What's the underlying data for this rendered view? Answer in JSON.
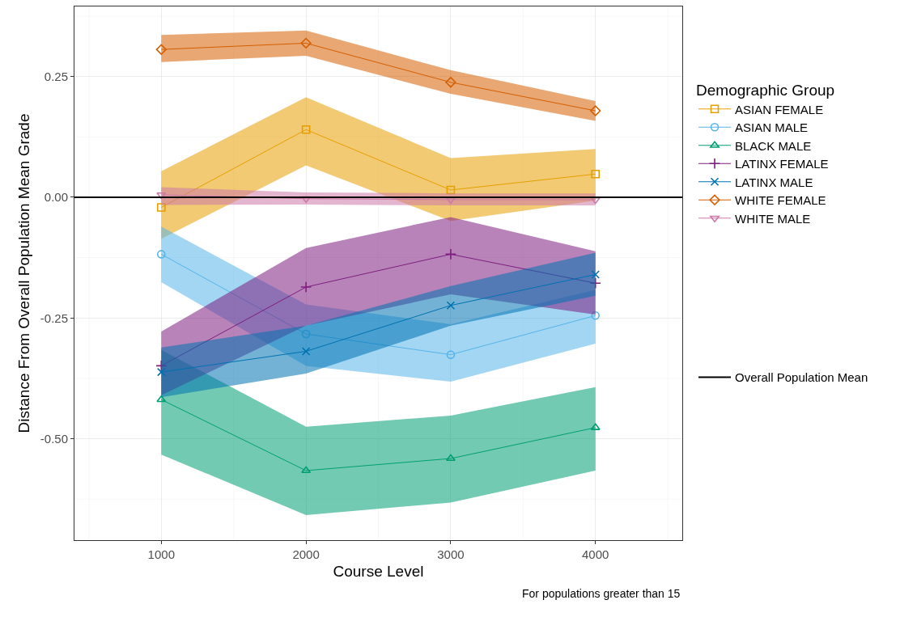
{
  "chart_data": {
    "type": "line",
    "xlabel": "Course Level",
    "ylabel": "Distance From Overall Population Mean Grade",
    "legend_title": "Demographic Group",
    "legend": "right",
    "grid": true,
    "x": [
      1000,
      2000,
      3000,
      4000
    ],
    "xlim": [
      400,
      4600
    ],
    "xticks": [
      1000,
      2000,
      3000,
      4000
    ],
    "ylim": [
      -0.71,
      0.395
    ],
    "yticks": [
      {
        "value": -0.5,
        "label": "-0.50"
      },
      {
        "value": -0.25,
        "label": "-0.25"
      },
      {
        "value": 0,
        "label": "0.00"
      },
      {
        "value": 0.25,
        "label": "0.25"
      }
    ],
    "series": [
      {
        "name": "ASIAN FEMALE",
        "color": "#e69f00",
        "marker": "square",
        "values": [
          -0.021,
          0.14,
          0.015,
          0.048
        ],
        "lower": [
          -0.086,
          0.066,
          -0.049,
          -0.007
        ],
        "upper": [
          0.054,
          0.207,
          0.081,
          0.1
        ]
      },
      {
        "name": "ASIAN MALE",
        "color": "#56b4e9",
        "marker": "circle",
        "values": [
          -0.118,
          -0.283,
          -0.326,
          -0.245
        ],
        "lower": [
          -0.176,
          -0.349,
          -0.382,
          -0.303
        ],
        "upper": [
          -0.061,
          -0.222,
          -0.263,
          -0.192
        ]
      },
      {
        "name": "BLACK MALE",
        "color": "#009e73",
        "marker": "triangle",
        "values": [
          -0.419,
          -0.566,
          -0.541,
          -0.477
        ],
        "lower": [
          -0.533,
          -0.658,
          -0.632,
          -0.566
        ],
        "upper": [
          -0.316,
          -0.475,
          -0.452,
          -0.393
        ]
      },
      {
        "name": "LATINX FEMALE",
        "color": "#7e1e80",
        "marker": "cross",
        "values": [
          -0.349,
          -0.186,
          -0.118,
          -0.178
        ],
        "lower": [
          -0.41,
          -0.266,
          -0.201,
          -0.243
        ],
        "upper": [
          -0.278,
          -0.105,
          -0.041,
          -0.112
        ]
      },
      {
        "name": "LATINX MALE",
        "color": "#0072b2",
        "marker": "x",
        "values": [
          -0.362,
          -0.319,
          -0.224,
          -0.16
        ],
        "lower": [
          -0.414,
          -0.365,
          -0.266,
          -0.204
        ],
        "upper": [
          -0.311,
          -0.266,
          -0.184,
          -0.115
        ]
      },
      {
        "name": "WHITE FEMALE",
        "color": "#d55e00",
        "marker": "diamond",
        "values": [
          0.306,
          0.319,
          0.238,
          0.179
        ],
        "lower": [
          0.28,
          0.293,
          0.214,
          0.158
        ],
        "upper": [
          0.336,
          0.345,
          0.263,
          0.199
        ]
      },
      {
        "name": "WHITE MALE",
        "color": "#cc79a7",
        "marker": "triangle-down",
        "values": [
          0.005,
          -0.003,
          -0.005,
          -0.005
        ],
        "lower": [
          -0.016,
          -0.015,
          -0.017,
          -0.017
        ],
        "upper": [
          0.021,
          0.01,
          0.008,
          0.008
        ]
      }
    ],
    "ref_lines": [
      {
        "axis": "y",
        "value": 0,
        "label": "Overall Population Mean",
        "color": "#000000"
      }
    ],
    "annotations": [
      "For populations greater than 15"
    ]
  }
}
